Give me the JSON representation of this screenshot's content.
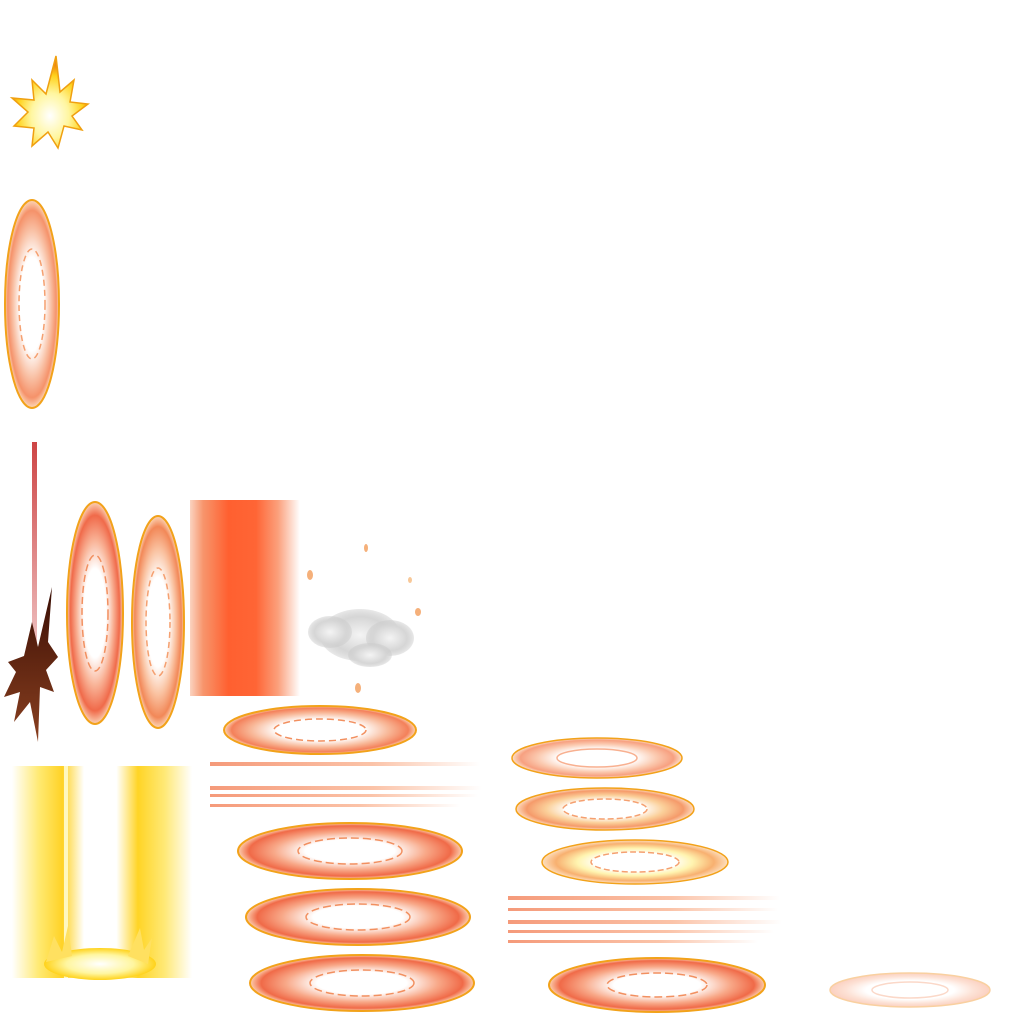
{
  "sheet": {
    "background": "#ffffff",
    "palette": {
      "core": "#ffffff",
      "flare_orange": "#f4683c",
      "salmon": "#f79a78",
      "gold_rim": "#f2a21a",
      "yellow_glow": "#ffe24a",
      "beam_orange": "#ff6030",
      "smoke_grey": "#cfcfcf",
      "dark_brown": "#6a2a0a"
    },
    "sprites": [
      {
        "name": "yellow-burst-sprite",
        "kind": "burst"
      },
      {
        "name": "portal-ring-vertical-large",
        "kind": "vertical-ring"
      },
      {
        "name": "red-spike-pillar-sprite",
        "kind": "spike"
      },
      {
        "name": "portal-ring-vertical-1",
        "kind": "vertical-ring"
      },
      {
        "name": "portal-ring-vertical-2",
        "kind": "vertical-ring"
      },
      {
        "name": "orange-beam-column",
        "kind": "beam"
      },
      {
        "name": "smoke-puff-sprite",
        "kind": "smoke"
      },
      {
        "name": "yellow-energy-column",
        "kind": "beam"
      },
      {
        "name": "flat-ring-row",
        "kind": "horizontal-ring"
      },
      {
        "name": "streak-lines",
        "kind": "streaks"
      },
      {
        "name": "faint-flat-ring",
        "kind": "horizontal-ring"
      }
    ]
  }
}
